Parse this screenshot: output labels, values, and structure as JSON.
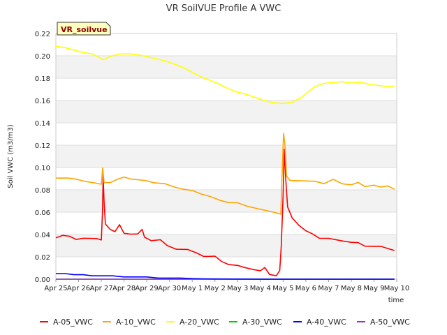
{
  "chart_data": {
    "type": "line",
    "title": "VR SoilVUE Profile A VWC",
    "badge": "VR_soilvue",
    "xlabel": "time",
    "ylabel": "Soil VWC (m3/m3)",
    "x_ticks": [
      "Apr 25",
      "Apr 26",
      "Apr 27",
      "Apr 28",
      "Apr 29",
      "Apr 30",
      "May 1",
      "May 2",
      "May 3",
      "May 4",
      "May 5",
      "May 6",
      "May 7",
      "May 8",
      "May 9",
      "May 10"
    ],
    "xlim": [
      "2024-04-25",
      "2024-05-10"
    ],
    "ylim": [
      0.0,
      0.22
    ],
    "y_ticks": [
      "0.00",
      "0.02",
      "0.04",
      "0.06",
      "0.08",
      "0.10",
      "0.12",
      "0.14",
      "0.16",
      "0.18",
      "0.20",
      "0.22"
    ],
    "grid": "horizontal bands",
    "legend_position": "bottom",
    "series": [
      {
        "name": "A-05_VWC",
        "color": "#ff0000",
        "points": [
          [
            0.0,
            0.037
          ],
          [
            0.3,
            0.039
          ],
          [
            0.6,
            0.038
          ],
          [
            0.9,
            0.035
          ],
          [
            1.2,
            0.036
          ],
          [
            1.5,
            0.036
          ],
          [
            1.8,
            0.036
          ],
          [
            2.0,
            0.035
          ],
          [
            2.05,
            0.06
          ],
          [
            2.08,
            0.093
          ],
          [
            2.12,
            0.07
          ],
          [
            2.18,
            0.05
          ],
          [
            2.4,
            0.045
          ],
          [
            2.6,
            0.043
          ],
          [
            2.8,
            0.049
          ],
          [
            3.0,
            0.041
          ],
          [
            3.3,
            0.04
          ],
          [
            3.6,
            0.04
          ],
          [
            3.8,
            0.044
          ],
          [
            3.9,
            0.037
          ],
          [
            4.2,
            0.034
          ],
          [
            4.6,
            0.035
          ],
          [
            4.9,
            0.03
          ],
          [
            5.3,
            0.027
          ],
          [
            5.8,
            0.027
          ],
          [
            6.2,
            0.024
          ],
          [
            6.5,
            0.021
          ],
          [
            6.8,
            0.021
          ],
          [
            7.0,
            0.021
          ],
          [
            7.3,
            0.016
          ],
          [
            7.6,
            0.013
          ],
          [
            8.0,
            0.012
          ],
          [
            8.3,
            0.01
          ],
          [
            8.7,
            0.008
          ],
          [
            9.0,
            0.007
          ],
          [
            9.2,
            0.01
          ],
          [
            9.4,
            0.004
          ],
          [
            9.7,
            0.003
          ],
          [
            9.85,
            0.008
          ],
          [
            9.92,
            0.03
          ],
          [
            10.0,
            0.075
          ],
          [
            10.05,
            0.117
          ],
          [
            10.1,
            0.095
          ],
          [
            10.2,
            0.065
          ],
          [
            10.4,
            0.055
          ],
          [
            10.7,
            0.048
          ],
          [
            11.0,
            0.043
          ],
          [
            11.3,
            0.04
          ],
          [
            11.6,
            0.036
          ],
          [
            12.0,
            0.036
          ],
          [
            12.3,
            0.035
          ],
          [
            12.6,
            0.034
          ],
          [
            13.0,
            0.033
          ],
          [
            13.3,
            0.033
          ],
          [
            13.6,
            0.03
          ],
          [
            14.0,
            0.03
          ],
          [
            14.3,
            0.03
          ],
          [
            14.6,
            0.028
          ],
          [
            14.9,
            0.026
          ]
        ]
      },
      {
        "name": "A-10_VWC",
        "color": "#ffa500",
        "points": [
          [
            0.0,
            0.09
          ],
          [
            0.5,
            0.09
          ],
          [
            0.9,
            0.089
          ],
          [
            1.3,
            0.087
          ],
          [
            1.7,
            0.086
          ],
          [
            2.0,
            0.085
          ],
          [
            2.06,
            0.1
          ],
          [
            2.12,
            0.087
          ],
          [
            2.4,
            0.087
          ],
          [
            2.7,
            0.09
          ],
          [
            3.0,
            0.092
          ],
          [
            3.3,
            0.09
          ],
          [
            3.7,
            0.089
          ],
          [
            4.0,
            0.088
          ],
          [
            4.3,
            0.086
          ],
          [
            4.8,
            0.085
          ],
          [
            5.2,
            0.082
          ],
          [
            5.6,
            0.08
          ],
          [
            6.0,
            0.079
          ],
          [
            6.4,
            0.076
          ],
          [
            6.8,
            0.074
          ],
          [
            7.2,
            0.071
          ],
          [
            7.6,
            0.069
          ],
          [
            8.0,
            0.069
          ],
          [
            8.4,
            0.066
          ],
          [
            8.8,
            0.064
          ],
          [
            9.2,
            0.062
          ],
          [
            9.6,
            0.06
          ],
          [
            9.9,
            0.058
          ],
          [
            9.95,
            0.09
          ],
          [
            10.02,
            0.13
          ],
          [
            10.08,
            0.12
          ],
          [
            10.15,
            0.092
          ],
          [
            10.3,
            0.088
          ],
          [
            10.7,
            0.088
          ],
          [
            11.0,
            0.088
          ],
          [
            11.4,
            0.088
          ],
          [
            11.8,
            0.086
          ],
          [
            12.2,
            0.09
          ],
          [
            12.6,
            0.086
          ],
          [
            13.0,
            0.085
          ],
          [
            13.3,
            0.087
          ],
          [
            13.6,
            0.083
          ],
          [
            14.0,
            0.084
          ],
          [
            14.3,
            0.082
          ],
          [
            14.6,
            0.083
          ],
          [
            14.9,
            0.08
          ]
        ]
      },
      {
        "name": "A-20_VWC",
        "color": "#ffff00",
        "points": [
          [
            0.0,
            0.208
          ],
          [
            0.4,
            0.207
          ],
          [
            0.8,
            0.205
          ],
          [
            1.2,
            0.203
          ],
          [
            1.6,
            0.202
          ],
          [
            1.9,
            0.199
          ],
          [
            2.1,
            0.197
          ],
          [
            2.4,
            0.2
          ],
          [
            2.8,
            0.202
          ],
          [
            3.2,
            0.202
          ],
          [
            3.6,
            0.201
          ],
          [
            4.0,
            0.199
          ],
          [
            4.4,
            0.197
          ],
          [
            4.8,
            0.195
          ],
          [
            5.2,
            0.192
          ],
          [
            5.6,
            0.189
          ],
          [
            6.0,
            0.185
          ],
          [
            6.4,
            0.181
          ],
          [
            6.8,
            0.178
          ],
          [
            7.2,
            0.175
          ],
          [
            7.6,
            0.171
          ],
          [
            8.0,
            0.168
          ],
          [
            8.4,
            0.166
          ],
          [
            8.8,
            0.163
          ],
          [
            9.2,
            0.16
          ],
          [
            9.6,
            0.158
          ],
          [
            10.0,
            0.157
          ],
          [
            10.4,
            0.158
          ],
          [
            10.8,
            0.162
          ],
          [
            11.1,
            0.167
          ],
          [
            11.4,
            0.172
          ],
          [
            11.8,
            0.175
          ],
          [
            12.2,
            0.176
          ],
          [
            12.6,
            0.177
          ],
          [
            13.0,
            0.176
          ],
          [
            13.4,
            0.177
          ],
          [
            13.8,
            0.175
          ],
          [
            14.2,
            0.174
          ],
          [
            14.6,
            0.173
          ],
          [
            14.9,
            0.173
          ]
        ]
      },
      {
        "name": "A-30_VWC",
        "color": "#00cc00",
        "points": [
          [
            0.0,
            0.0
          ],
          [
            14.9,
            0.0
          ]
        ]
      },
      {
        "name": "A-40_VWC",
        "color": "#0000ff",
        "points": [
          [
            0.0,
            0.005
          ],
          [
            0.4,
            0.005
          ],
          [
            0.8,
            0.004
          ],
          [
            1.2,
            0.004
          ],
          [
            1.6,
            0.003
          ],
          [
            2.0,
            0.003
          ],
          [
            2.5,
            0.003
          ],
          [
            3.0,
            0.002
          ],
          [
            3.5,
            0.002
          ],
          [
            4.0,
            0.002
          ],
          [
            4.5,
            0.001
          ],
          [
            5.0,
            0.001
          ],
          [
            5.5,
            0.001
          ],
          [
            6.0,
            0.0005
          ],
          [
            6.5,
            0.0003
          ],
          [
            7.0,
            0.0002
          ],
          [
            8.0,
            0.0001
          ],
          [
            9.0,
            0.0
          ],
          [
            10.0,
            0.0
          ],
          [
            14.9,
            0.0
          ]
        ]
      },
      {
        "name": "A-50_VWC",
        "color": "#9932cc",
        "points": [
          [
            0.0,
            0.0
          ],
          [
            14.9,
            0.0
          ]
        ]
      }
    ]
  }
}
